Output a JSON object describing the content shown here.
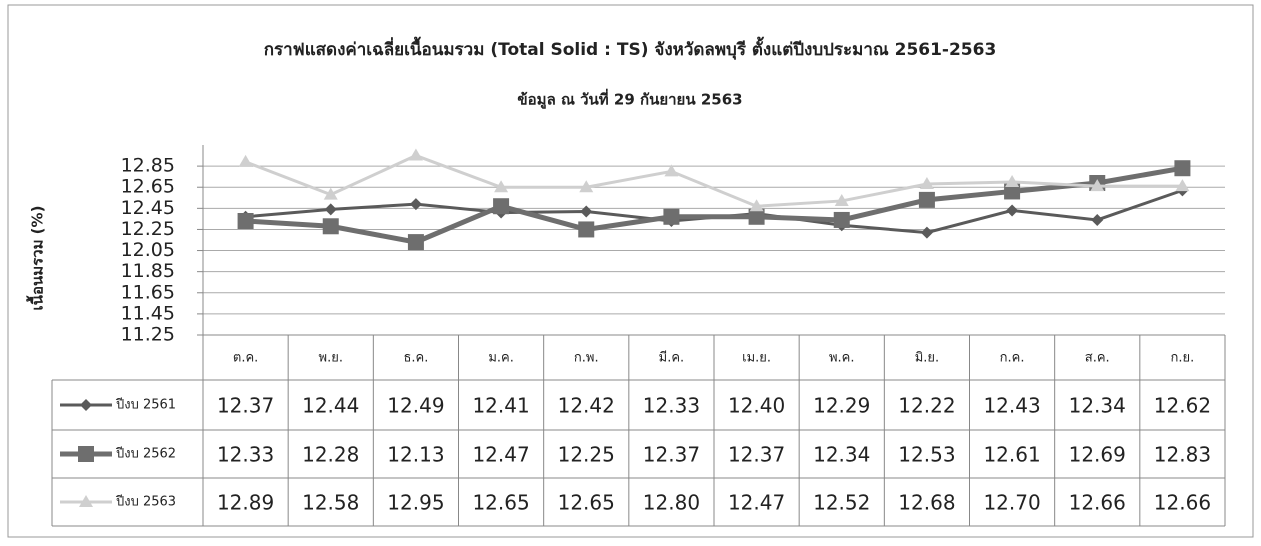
{
  "chart_data": {
    "type": "line",
    "title": "กราฟแสดงค่าเฉลี่ยเนื้อนมรวม (Total Solid : TS) จังหวัดลพบุรี ตั้งแต่ปีงบประมาณ 2561-2563",
    "subtitle": "ข้อมูล ณ วันที่ 29 กันยายน 2563",
    "y_label": "เนื้อนมรวม (%)",
    "categories": [
      "ต.ค.",
      "พ.ย.",
      "ธ.ค.",
      "ม.ค.",
      "ก.พ.",
      "มี.ค.",
      "เม.ย.",
      "พ.ค.",
      "มิ.ย.",
      "ก.ค.",
      "ส.ค.",
      "ก.ย."
    ],
    "series": [
      {
        "name": "ปีงบ 2561",
        "color": "#5a5a5a",
        "marker": "diamond",
        "values": [
          12.37,
          12.44,
          12.49,
          12.41,
          12.42,
          12.33,
          12.4,
          12.29,
          12.22,
          12.43,
          12.34,
          12.62
        ],
        "value_labels": [
          "12.37",
          "12.44",
          "12.49",
          "12.41",
          "12.42",
          "12.33",
          "12.40",
          "12.29",
          "12.22",
          "12.43",
          "12.34",
          "12.62"
        ]
      },
      {
        "name": "ปีงบ 2562",
        "color": "#6e6e6e",
        "marker": "square",
        "values": [
          12.33,
          12.28,
          12.13,
          12.47,
          12.25,
          12.37,
          12.37,
          12.34,
          12.53,
          12.61,
          12.69,
          12.83
        ],
        "value_labels": [
          "12.33",
          "12.28",
          "12.13",
          "12.47",
          "12.25",
          "12.37",
          "12.37",
          "12.34",
          "12.53",
          "12.61",
          "12.69",
          "12.83"
        ]
      },
      {
        "name": "ปีงบ 2563",
        "color": "#cfcfcf",
        "marker": "triangle",
        "values": [
          12.89,
          12.58,
          12.95,
          12.65,
          12.65,
          12.8,
          12.47,
          12.52,
          12.68,
          12.7,
          12.66,
          12.66
        ],
        "value_labels": [
          "12.89",
          "12.58",
          "12.95",
          "12.65",
          "12.65",
          "12.80",
          "12.47",
          "12.52",
          "12.68",
          "12.70",
          "12.66",
          "12.66"
        ]
      }
    ],
    "ylim": [
      11.25,
      13.05
    ],
    "yticks": [
      11.25,
      11.45,
      11.65,
      11.85,
      12.05,
      12.25,
      12.45,
      12.65,
      12.85
    ],
    "grid": true
  }
}
